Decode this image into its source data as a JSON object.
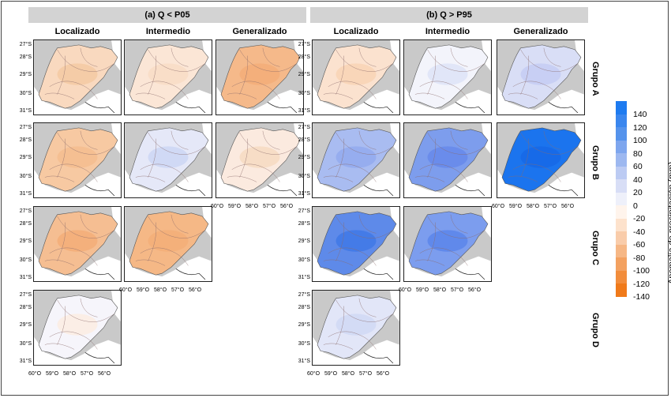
{
  "sections": [
    {
      "id": "a",
      "title": "(a) Q < P05"
    },
    {
      "id": "b",
      "title": "(b) Q > P95"
    }
  ],
  "columns": [
    "Localizado",
    "Intermedio",
    "Generalizado"
  ],
  "rows": [
    "Grupo A",
    "Grupo B",
    "Grupo C",
    "Grupo D"
  ],
  "lat_ticks": [
    "27°S",
    "28°S",
    "29°S",
    "30°S",
    "31°S"
  ],
  "lon_ticks": [
    "60°O",
    "59°O",
    "58°O",
    "57°O",
    "56°O"
  ],
  "colorbar": {
    "title": "Anomalía de precipitación (mm)",
    "labels": [
      "140",
      "120",
      "100",
      "80",
      "60",
      "40",
      "20",
      "0",
      "-20",
      "-40",
      "-60",
      "-80",
      "-100",
      "-120",
      "-140"
    ],
    "colors": [
      "#1e7bf0",
      "#3a86ee",
      "#5593ec",
      "#7ea6ee",
      "#9db8f0",
      "#bccbf3",
      "#d8def6",
      "#eef0fa",
      "#fff4ec",
      "#fde2cc",
      "#f9ccaa",
      "#f6b785",
      "#f3a160",
      "#f28d3c",
      "#f07a1a"
    ]
  },
  "panels": [
    {
      "section": "a",
      "row": 0,
      "col": 0,
      "fill": "#f9d9bf",
      "center": "#f5c9a2"
    },
    {
      "section": "a",
      "row": 0,
      "col": 1,
      "fill": "#fbe6d6",
      "center": "#f8dcc6"
    },
    {
      "section": "a",
      "row": 0,
      "col": 2,
      "fill": "#f5b98a",
      "center": "#f3ad78"
    },
    {
      "section": "a",
      "row": 1,
      "col": 0,
      "fill": "#f7c9a2",
      "center": "#f5bd8f"
    },
    {
      "section": "a",
      "row": 1,
      "col": 1,
      "fill": "#e5e8f8",
      "center": "#cdd6f4"
    },
    {
      "section": "a",
      "row": 1,
      "col": 2,
      "fill": "#fbeadf",
      "center": "#f6dac2"
    },
    {
      "section": "a",
      "row": 2,
      "col": 0,
      "fill": "#f5be92",
      "center": "#f3ae78"
    },
    {
      "section": "a",
      "row": 2,
      "col": 1,
      "fill": "#f5b886",
      "center": "#f3ae78"
    },
    {
      "section": "a",
      "row": 3,
      "col": 0,
      "fill": "#f6f5fb",
      "center": "#fbece2"
    },
    {
      "section": "b",
      "row": 0,
      "col": 0,
      "fill": "#fbe2cf",
      "center": "#f8d3b5"
    },
    {
      "section": "b",
      "row": 0,
      "col": 1,
      "fill": "#f3f4fb",
      "center": "#dde3f7"
    },
    {
      "section": "b",
      "row": 0,
      "col": 2,
      "fill": "#d9def6",
      "center": "#c4cdf3"
    },
    {
      "section": "b",
      "row": 1,
      "col": 0,
      "fill": "#a9bcf1",
      "center": "#93aaef"
    },
    {
      "section": "b",
      "row": 1,
      "col": 1,
      "fill": "#7d9ded",
      "center": "#6689ea"
    },
    {
      "section": "b",
      "row": 1,
      "col": 2,
      "fill": "#1b74ee",
      "center": "#1668e6"
    },
    {
      "section": "b",
      "row": 2,
      "col": 0,
      "fill": "#5e8ae9",
      "center": "#3f78e6"
    },
    {
      "section": "b",
      "row": 2,
      "col": 1,
      "fill": "#7c9dee",
      "center": "#5c86ea"
    },
    {
      "section": "b",
      "row": 3,
      "col": 0,
      "fill": "#e2e6f8",
      "center": "#d0d8f5"
    }
  ]
}
